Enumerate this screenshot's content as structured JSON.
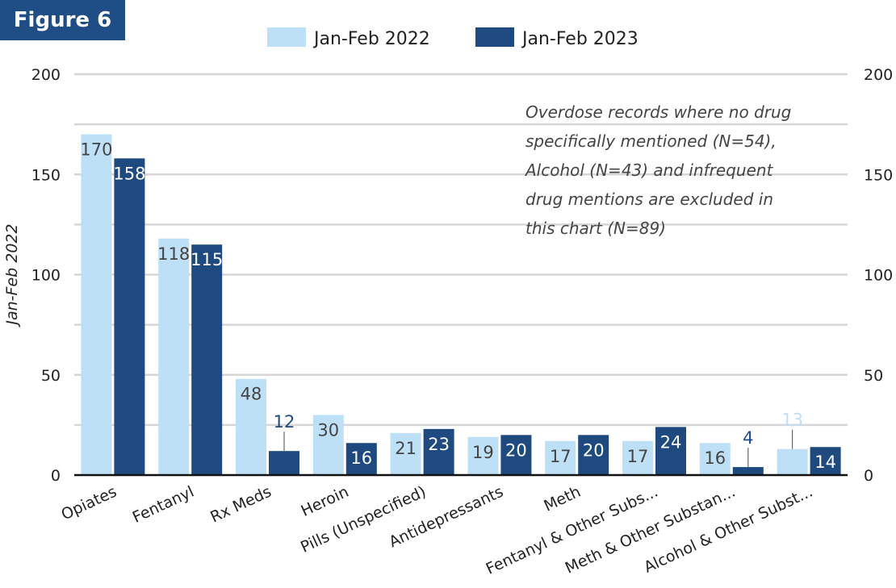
{
  "figure_label": "Figure 6",
  "note_lines": [
    "Overdose records where no drug",
    "specifically mentioned (N=54),",
    "Alcohol (N=43) and infrequent",
    "drug mentions are excluded in",
    "this chart (N=89)"
  ],
  "colors": {
    "series_2022": "#bde0f7",
    "series_2023": "#1f4a80",
    "badge": "#1f4e87"
  },
  "chart_data": {
    "type": "bar",
    "categories": [
      "Opiates",
      "Fentanyl",
      "Rx Meds",
      "Heroin",
      "Pills (Unspecified)",
      "Antidepressants",
      "Meth",
      "Fentanyl & Other Subs...",
      "Meth & Other Substan...",
      "Alcohol & Other Subst..."
    ],
    "series": [
      {
        "name": "Jan-Feb 2022",
        "values": [
          170,
          118,
          48,
          30,
          21,
          19,
          17,
          17,
          16,
          13
        ]
      },
      {
        "name": "Jan-Feb 2023",
        "values": [
          158,
          115,
          12,
          16,
          23,
          20,
          20,
          24,
          4,
          14
        ]
      }
    ],
    "ylabel": "Jan-Feb 2022",
    "ylim": [
      0,
      200
    ],
    "yticks": [
      0,
      50,
      100,
      150,
      200
    ],
    "grid": true,
    "legend_position": "top-center"
  }
}
